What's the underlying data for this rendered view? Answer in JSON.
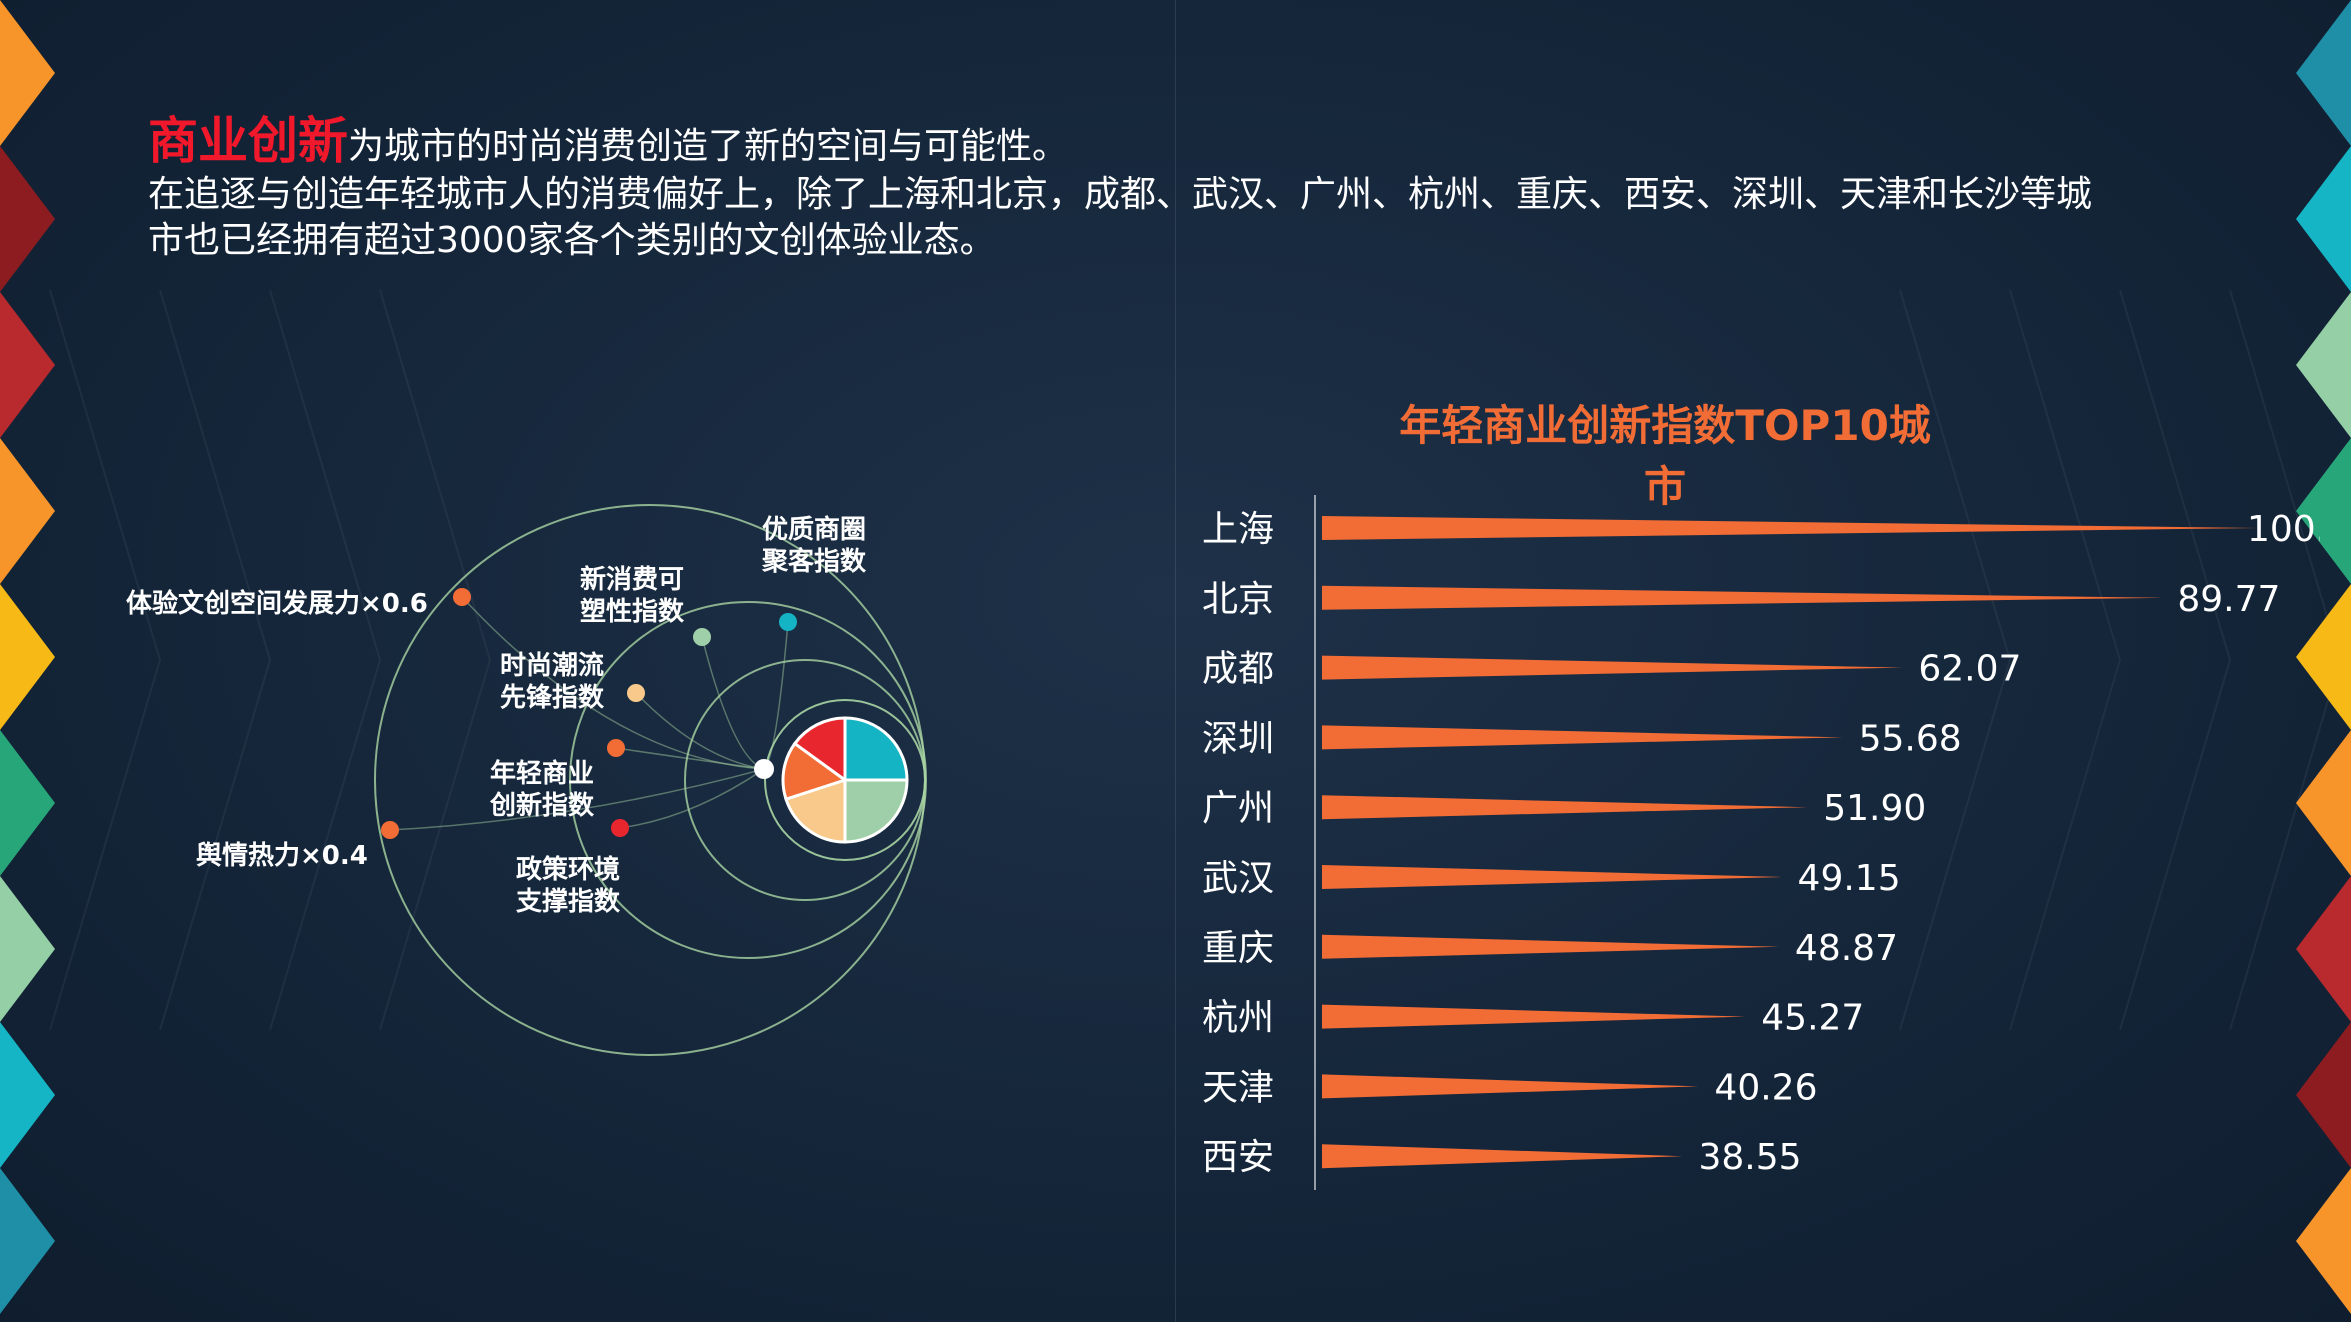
{
  "intro": {
    "highlight": "商业创新",
    "line1_rest": "为城市的时尚消费创造了新的空间与可能性。",
    "line2": "在追逐与创造年轻城市人的消费偏好上，除了上海和北京，成都、武汉、广州、杭州、重庆、西安、深圳、天津和长沙等城",
    "line3": "市也已经拥有超过3000家各个类别的文创体验业态。"
  },
  "diagram": {
    "nodes": [
      {
        "label": "体验文创空间发展力×0.6",
        "color": "#f26c36"
      },
      {
        "label": "舆情热力×0.4",
        "color": "#f26c36"
      },
      {
        "label": "优质商圈\n聚客指数",
        "color": "#14b4c4"
      },
      {
        "label": "新消费可\n塑性指数",
        "color": "#9fcfa8"
      },
      {
        "label": "时尚潮流\n先锋指数",
        "color": "#f8c98a"
      },
      {
        "label": "年轻商业\n创新指数",
        "color": "#f26c36"
      },
      {
        "label": "政策环境\n支撑指数",
        "color": "#e8262e"
      }
    ],
    "pie_colors": [
      "#14b4c4",
      "#9fcfa8",
      "#f8c98a",
      "#f26c36",
      "#e8262e"
    ]
  },
  "chart_data": {
    "type": "bar",
    "title": "年轻商业创新指数TOP10城市",
    "categories": [
      "上海",
      "北京",
      "成都",
      "深圳",
      "广州",
      "武汉",
      "重庆",
      "杭州",
      "天津",
      "西安"
    ],
    "values": [
      100.0,
      89.77,
      62.07,
      55.68,
      51.9,
      49.15,
      48.87,
      45.27,
      40.26,
      38.55
    ],
    "value_labels": [
      "100.00",
      "89.77",
      "62.07",
      "55.68",
      "51.90",
      "49.15",
      "48.87",
      "45.27",
      "40.26",
      "38.55"
    ],
    "bar_color": "#f26c36",
    "xlim": [
      0,
      100
    ],
    "orientation": "horizontal"
  }
}
